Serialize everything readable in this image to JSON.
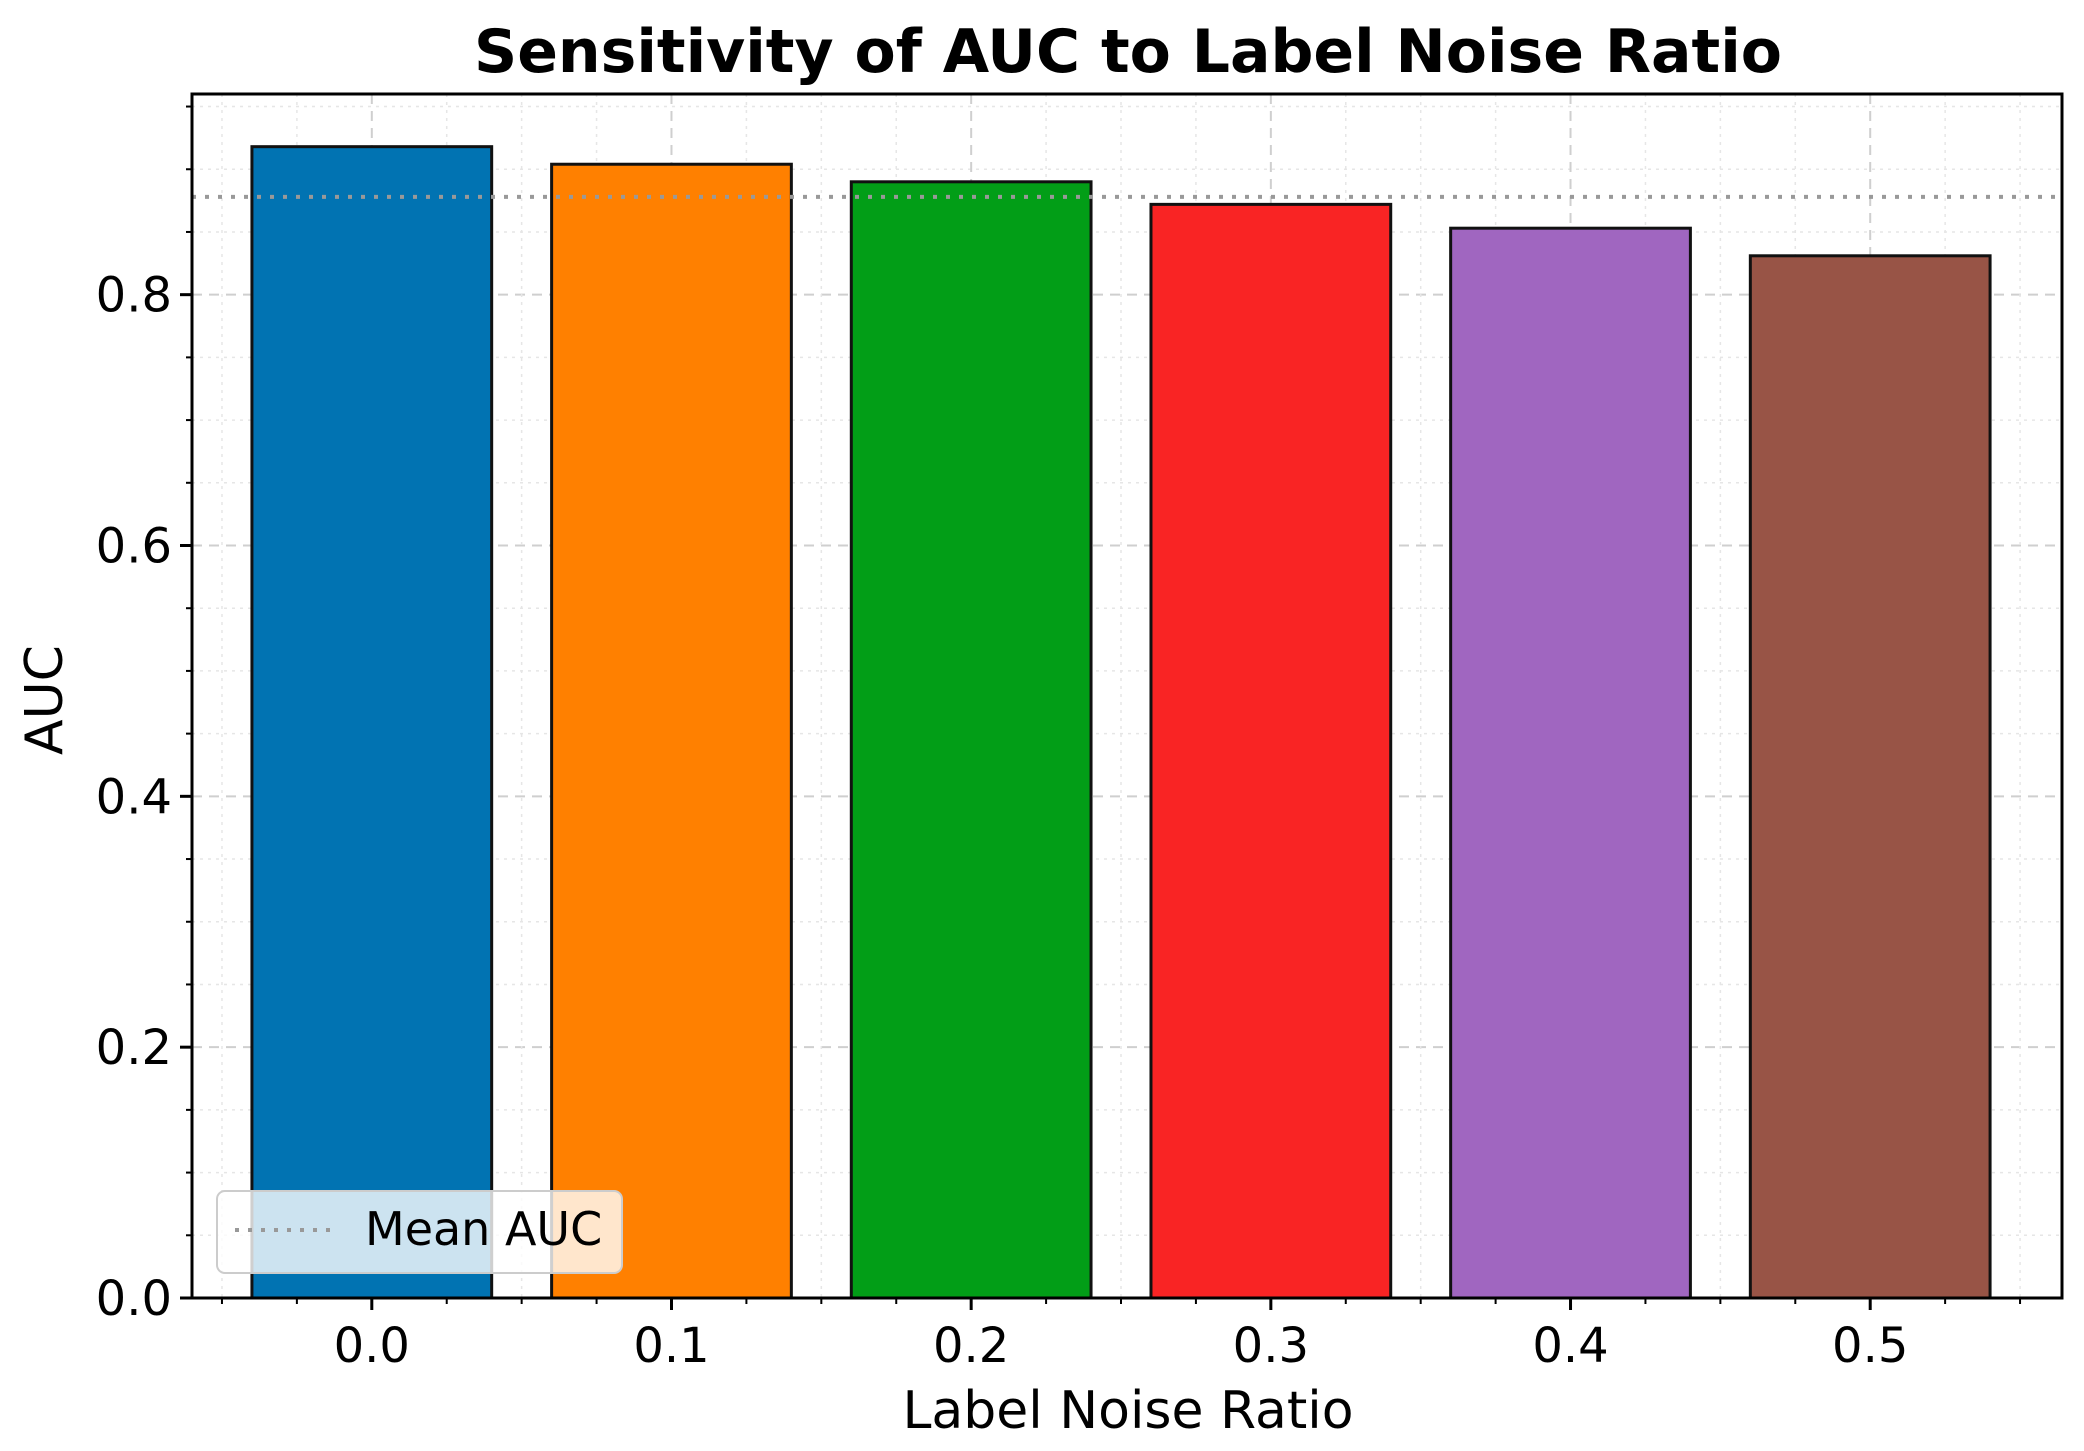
{
  "chart_data": {
    "type": "bar",
    "title": "Sensitivity of AUC to Label Noise Ratio",
    "xlabel": "Label Noise Ratio",
    "ylabel": "AUC",
    "categories": [
      "0.0",
      "0.1",
      "0.2",
      "0.3",
      "0.4",
      "0.5"
    ],
    "values": [
      0.918,
      0.904,
      0.89,
      0.872,
      0.853,
      0.831
    ],
    "colors": [
      "#0173b2",
      "#ff8000",
      "#029e17",
      "#f92424",
      "#a066c0",
      "#985446"
    ],
    "ylim": [
      0,
      0.96
    ],
    "yticks": [
      "0.0",
      "0.2",
      "0.4",
      "0.6",
      "0.8"
    ],
    "ytick_values": [
      0.0,
      0.2,
      0.4,
      0.6,
      0.8
    ],
    "grid": true,
    "reference_line": {
      "label": "Mean AUC",
      "value": 0.878,
      "style": "dotted",
      "color": "#999999"
    },
    "legend": {
      "position": "lower-left",
      "entries": [
        "Mean AUC"
      ]
    }
  }
}
